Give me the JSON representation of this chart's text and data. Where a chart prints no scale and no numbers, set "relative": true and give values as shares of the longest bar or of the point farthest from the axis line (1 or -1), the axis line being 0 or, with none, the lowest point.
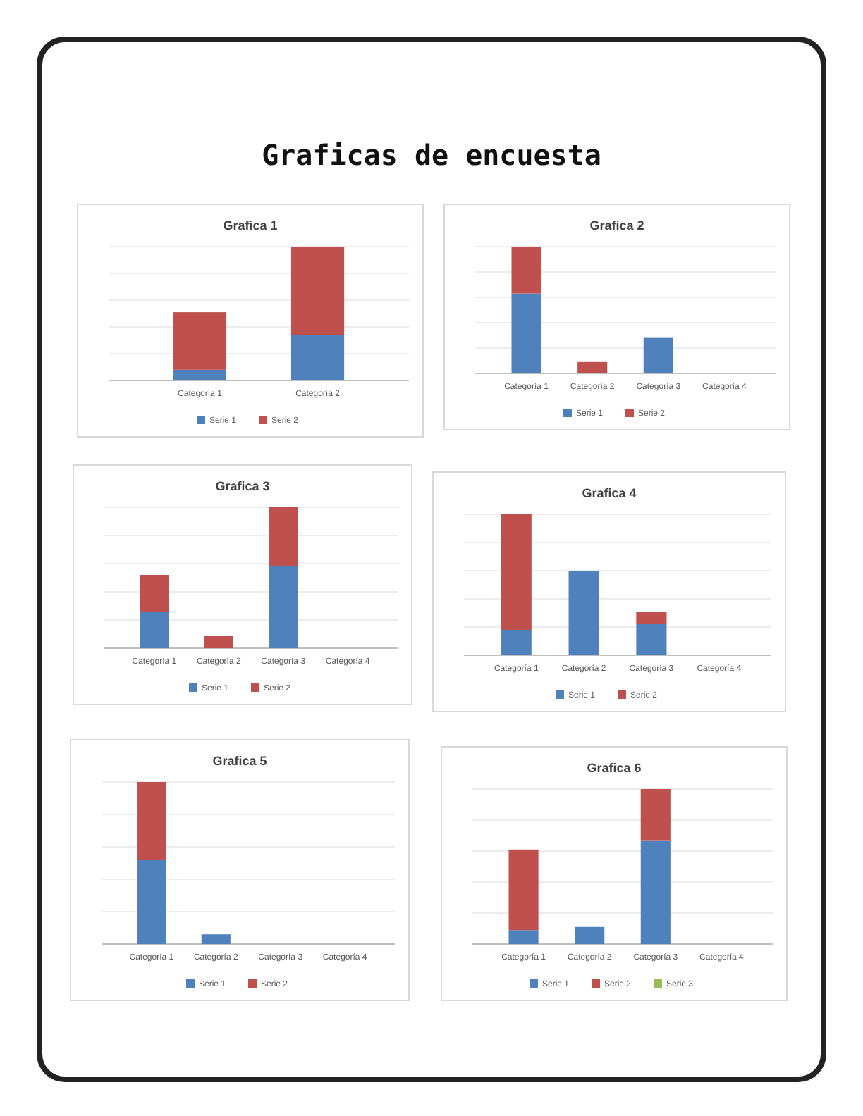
{
  "chart_data": [
    {
      "type": "bar",
      "title": "Grafica 1",
      "annotations": [
        "Graficas de encuesta"
      ],
      "categories": [
        "Categoría 1",
        "Categoría 2"
      ],
      "stacked": true,
      "relative": true,
      "grid": "y",
      "legend": "bottom",
      "tick_labels": "x",
      "series": [
        {
          "name": "Serie 1",
          "color": "#4f81bd",
          "values": [
            0.08,
            0.34
          ]
        },
        {
          "name": "Serie 2",
          "color": "#c0504d",
          "values": [
            0.43,
            0.66
          ]
        }
      ]
    },
    {
      "type": "bar",
      "title": "Grafica 2",
      "categories": [
        "Categoría 1",
        "Categoría 2",
        "Categoría 3",
        "Categoría 4"
      ],
      "stacked": true,
      "relative": true,
      "grid": "y",
      "legend": "bottom",
      "tick_labels": "x",
      "series": [
        {
          "name": "Serie 1",
          "color": "#4f81bd",
          "values": [
            0.63,
            null,
            0.28,
            null
          ]
        },
        {
          "name": "Serie 2",
          "color": "#c0504d",
          "values": [
            0.37,
            0.09,
            null,
            null
          ]
        }
      ]
    },
    {
      "type": "bar",
      "title": "Grafica 3",
      "categories": [
        "Categoría 1",
        "Categoría 2",
        "Categoría 3",
        "Categoría 4"
      ],
      "stacked": true,
      "relative": true,
      "grid": "y",
      "legend": "bottom",
      "tick_labels": "x",
      "series": [
        {
          "name": "Serie 1",
          "color": "#4f81bd",
          "values": [
            0.26,
            null,
            0.58,
            null
          ]
        },
        {
          "name": "Serie 2",
          "color": "#c0504d",
          "values": [
            0.26,
            0.09,
            0.42,
            null
          ]
        }
      ]
    },
    {
      "type": "bar",
      "title": "Grafica 4",
      "categories": [
        "Categoría 1",
        "Categoría 2",
        "Categoría 3",
        "Categoría 4"
      ],
      "stacked": true,
      "relative": true,
      "grid": "y",
      "legend": "bottom",
      "tick_labels": "x",
      "series": [
        {
          "name": "Serie 1",
          "color": "#4f81bd",
          "values": [
            0.18,
            0.6,
            0.22,
            null
          ]
        },
        {
          "name": "Serie 2",
          "color": "#c0504d",
          "values": [
            0.82,
            null,
            0.09,
            null
          ]
        }
      ]
    },
    {
      "type": "bar",
      "title": "Grafica 5",
      "categories": [
        "Categoría 1",
        "Categoría 2",
        "Categoría 3",
        "Categoría 4"
      ],
      "stacked": true,
      "relative": true,
      "grid": "y",
      "legend": "bottom",
      "tick_labels": "x",
      "series": [
        {
          "name": "Serie 1",
          "color": "#4f81bd",
          "values": [
            0.52,
            0.06,
            null,
            null
          ]
        },
        {
          "name": "Serie 2",
          "color": "#c0504d",
          "values": [
            0.48,
            null,
            null,
            null
          ]
        }
      ]
    },
    {
      "type": "bar",
      "title": "Grafica 6",
      "categories": [
        "Categoría 1",
        "Categoría 2",
        "Categoría 3",
        "Categoría 4"
      ],
      "stacked": true,
      "relative": true,
      "grid": "y",
      "legend": "bottom",
      "tick_labels": "x",
      "series": [
        {
          "name": "Serie 1",
          "color": "#4f81bd",
          "values": [
            0.09,
            0.11,
            0.67,
            null
          ]
        },
        {
          "name": "Serie 2",
          "color": "#c0504d",
          "values": [
            0.52,
            null,
            0.33,
            null
          ]
        },
        {
          "name": "Serie 3",
          "color": "#9bbb59",
          "values": [
            null,
            null,
            null,
            null
          ]
        }
      ]
    }
  ]
}
